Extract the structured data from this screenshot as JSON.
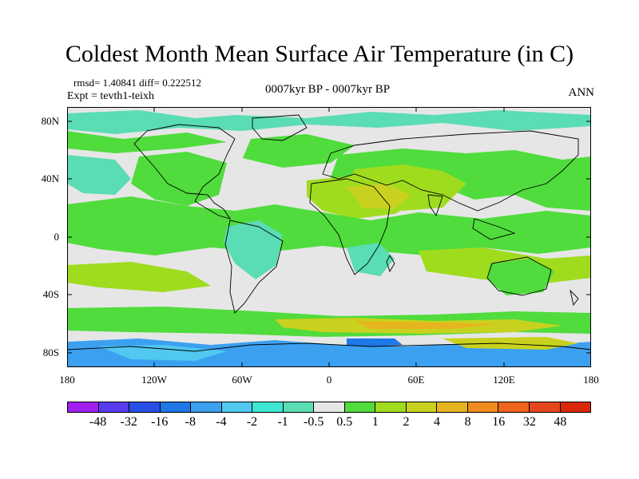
{
  "title": "Coldest Month Mean Surface Air Temperature (in C)",
  "stats": "rmsd= 1.40841 diff= 0.222512",
  "experiment": "Expt = tevth1-teixh",
  "period": "0007kyr BP - 0007kyr BP",
  "season": "ANN",
  "lat_labels": [
    "80N",
    "40N",
    "0",
    "40S",
    "80S"
  ],
  "lon_labels": [
    "180",
    "120W",
    "60W",
    "0",
    "60E",
    "120E",
    "180"
  ],
  "colorbar": {
    "labels": [
      "-48",
      "-32",
      "-16",
      "-8",
      "-4",
      "-2",
      "-1",
      "-0.5",
      "0.5",
      "1",
      "2",
      "4",
      "8",
      "16",
      "32",
      "48"
    ],
    "colors": [
      "#a020f0",
      "#5a3cf0",
      "#2850e8",
      "#1e78e6",
      "#3ca0f0",
      "#50c8f0",
      "#3ce6d2",
      "#5adcb4",
      "#e6e6e6",
      "#50dc3c",
      "#a0dc1e",
      "#c8d21e",
      "#e6b41e",
      "#f08c1e",
      "#f0641e",
      "#e6461e",
      "#dc280a"
    ]
  },
  "colors": {
    "background_field": "#e6e6e6",
    "ocean_neutral": "#e6e6e6",
    "coastline": "#000000"
  }
}
